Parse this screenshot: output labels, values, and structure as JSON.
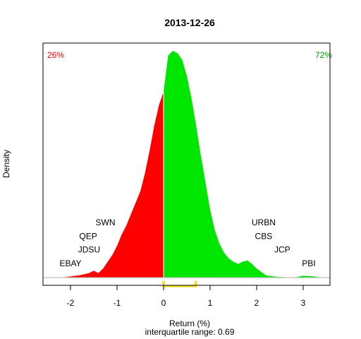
{
  "chart_data": {
    "type": "area",
    "title": "2013-12-26",
    "xlabel": "Return (%)",
    "subtitle": "interquartile range: 0.69",
    "ylabel": "Density",
    "xlim": [
      -2.55,
      3.55
    ],
    "ylim": [
      0,
      1.0
    ],
    "x_ticks": [
      "-2",
      "-1",
      "0",
      "1",
      "2",
      "3"
    ],
    "left_pct": "26%",
    "right_pct": "72%",
    "colors": {
      "negative": "#ff0000",
      "positive": "#00e600",
      "iqr": "#ffd700",
      "zero_line": "#ffffff",
      "baseline": "#b0b0b0"
    },
    "iqr": [
      0.0,
      0.69
    ],
    "density_curve": {
      "x": [
        -2.2,
        -2.0,
        -1.8,
        -1.6,
        -1.5,
        -1.4,
        -1.3,
        -1.2,
        -1.1,
        -1.0,
        -0.9,
        -0.8,
        -0.7,
        -0.6,
        -0.5,
        -0.4,
        -0.3,
        -0.2,
        -0.1,
        0.0,
        0.1,
        0.2,
        0.3,
        0.4,
        0.5,
        0.6,
        0.7,
        0.8,
        0.9,
        1.0,
        1.1,
        1.2,
        1.3,
        1.4,
        1.5,
        1.6,
        1.7,
        1.8,
        1.9,
        2.0,
        2.1,
        2.2,
        2.4,
        2.6,
        2.8,
        3.0,
        3.2,
        3.4
      ],
      "y": [
        0.0,
        0.005,
        0.01,
        0.02,
        0.03,
        0.02,
        0.04,
        0.07,
        0.1,
        0.14,
        0.19,
        0.23,
        0.28,
        0.33,
        0.38,
        0.46,
        0.56,
        0.67,
        0.76,
        0.82,
        0.98,
        1.0,
        0.99,
        0.96,
        0.89,
        0.79,
        0.67,
        0.54,
        0.42,
        0.3,
        0.21,
        0.15,
        0.11,
        0.085,
        0.07,
        0.06,
        0.07,
        0.075,
        0.06,
        0.04,
        0.025,
        0.01,
        0.004,
        0.002,
        0.0,
        0.008,
        0.006,
        0.0
      ]
    },
    "annotations": [
      {
        "text": "EBAY",
        "x": -2.0,
        "y": 0.05
      },
      {
        "text": "JDSU",
        "x": -1.6,
        "y": 0.11
      },
      {
        "text": "QEP",
        "x": -1.62,
        "y": 0.17
      },
      {
        "text": "SWN",
        "x": -1.25,
        "y": 0.23
      },
      {
        "text": "URBN",
        "x": 2.15,
        "y": 0.23
      },
      {
        "text": "CBS",
        "x": 2.15,
        "y": 0.17
      },
      {
        "text": "JCP",
        "x": 2.55,
        "y": 0.11
      },
      {
        "text": "PBI",
        "x": 3.12,
        "y": 0.05
      }
    ]
  }
}
